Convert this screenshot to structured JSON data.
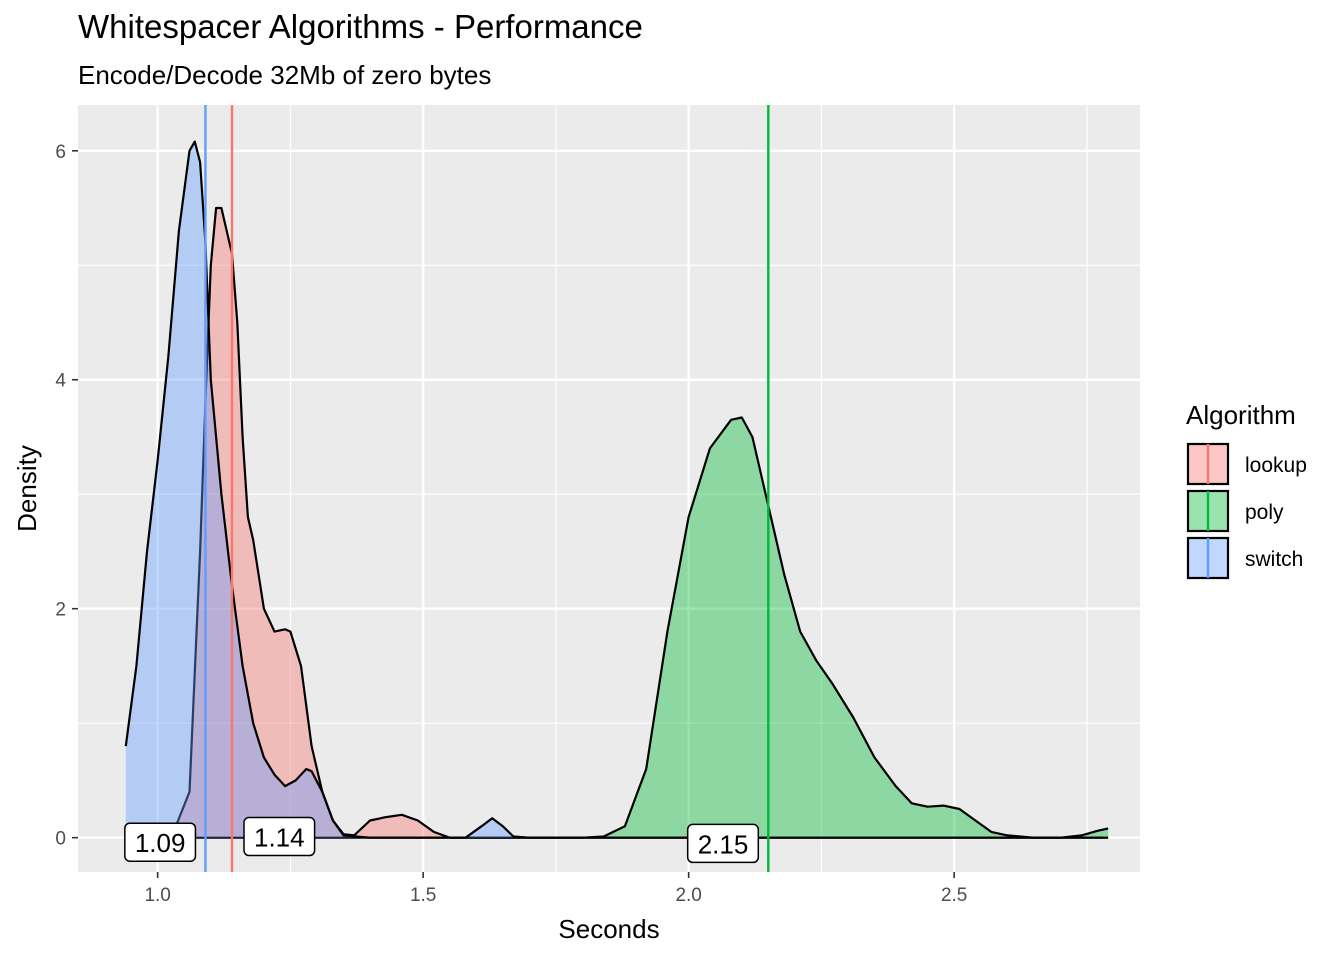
{
  "chart_data": {
    "type": "area",
    "title": "Whitespacer Algorithms - Performance",
    "subtitle": "Encode/Decode 32Mb of zero bytes",
    "xlabel": "Seconds",
    "ylabel": "Density",
    "xlim": [
      0.85,
      2.85
    ],
    "ylim": [
      -0.3,
      6.4
    ],
    "x_ticks": [
      1.0,
      1.5,
      2.0,
      2.5
    ],
    "x_tick_labels": [
      "1.0",
      "1.5",
      "2.0",
      "2.5"
    ],
    "y_ticks": [
      0,
      2,
      4,
      6
    ],
    "y_tick_labels": [
      "0",
      "2",
      "4",
      "6"
    ],
    "grid": true,
    "legend": {
      "title": "Algorithm",
      "position": "right"
    },
    "series": [
      {
        "name": "lookup",
        "fill": "#F8766D",
        "mean": 1.14,
        "mean_label": "1.14",
        "points": [
          [
            1.0,
            0.0
          ],
          [
            1.03,
            0.05
          ],
          [
            1.06,
            0.4
          ],
          [
            1.08,
            2.5
          ],
          [
            1.09,
            3.8
          ],
          [
            1.1,
            5.0
          ],
          [
            1.11,
            5.5
          ],
          [
            1.12,
            5.5
          ],
          [
            1.14,
            5.1
          ],
          [
            1.15,
            4.5
          ],
          [
            1.16,
            3.5
          ],
          [
            1.17,
            2.8
          ],
          [
            1.18,
            2.6
          ],
          [
            1.2,
            2.0
          ],
          [
            1.22,
            1.8
          ],
          [
            1.24,
            1.82
          ],
          [
            1.25,
            1.8
          ],
          [
            1.27,
            1.5
          ],
          [
            1.29,
            0.8
          ],
          [
            1.31,
            0.4
          ],
          [
            1.33,
            0.15
          ],
          [
            1.35,
            0.03
          ],
          [
            1.37,
            0.02
          ],
          [
            1.4,
            0.15
          ],
          [
            1.43,
            0.18
          ],
          [
            1.46,
            0.2
          ],
          [
            1.49,
            0.15
          ],
          [
            1.52,
            0.05
          ],
          [
            1.55,
            0.0
          ],
          [
            1.6,
            0.0
          ],
          [
            2.79,
            0.0
          ]
        ]
      },
      {
        "name": "poly",
        "fill": "#00BA38",
        "mean": 2.15,
        "mean_label": "2.15",
        "points": [
          [
            1.0,
            0.0
          ],
          [
            1.8,
            0.0
          ],
          [
            1.84,
            0.01
          ],
          [
            1.88,
            0.1
          ],
          [
            1.92,
            0.6
          ],
          [
            1.96,
            1.8
          ],
          [
            2.0,
            2.8
          ],
          [
            2.04,
            3.4
          ],
          [
            2.08,
            3.65
          ],
          [
            2.1,
            3.67
          ],
          [
            2.12,
            3.5
          ],
          [
            2.15,
            2.9
          ],
          [
            2.18,
            2.3
          ],
          [
            2.21,
            1.8
          ],
          [
            2.24,
            1.55
          ],
          [
            2.27,
            1.35
          ],
          [
            2.31,
            1.05
          ],
          [
            2.35,
            0.7
          ],
          [
            2.39,
            0.45
          ],
          [
            2.42,
            0.3
          ],
          [
            2.45,
            0.27
          ],
          [
            2.48,
            0.28
          ],
          [
            2.51,
            0.25
          ],
          [
            2.54,
            0.15
          ],
          [
            2.57,
            0.05
          ],
          [
            2.6,
            0.02
          ],
          [
            2.65,
            0.0
          ],
          [
            2.7,
            0.0
          ],
          [
            2.74,
            0.02
          ],
          [
            2.77,
            0.06
          ],
          [
            2.79,
            0.08
          ]
        ]
      },
      {
        "name": "switch",
        "fill": "#619CFF",
        "mean": 1.09,
        "mean_label": "1.09",
        "points": [
          [
            0.94,
            0.8
          ],
          [
            0.96,
            1.5
          ],
          [
            0.98,
            2.5
          ],
          [
            1.0,
            3.3
          ],
          [
            1.02,
            4.2
          ],
          [
            1.04,
            5.3
          ],
          [
            1.06,
            6.0
          ],
          [
            1.07,
            6.08
          ],
          [
            1.08,
            5.9
          ],
          [
            1.09,
            5.2
          ],
          [
            1.1,
            4.0
          ],
          [
            1.12,
            3.0
          ],
          [
            1.14,
            2.2
          ],
          [
            1.16,
            1.5
          ],
          [
            1.18,
            1.0
          ],
          [
            1.2,
            0.7
          ],
          [
            1.22,
            0.55
          ],
          [
            1.24,
            0.45
          ],
          [
            1.26,
            0.5
          ],
          [
            1.28,
            0.6
          ],
          [
            1.29,
            0.58
          ],
          [
            1.31,
            0.4
          ],
          [
            1.33,
            0.15
          ],
          [
            1.35,
            0.02
          ],
          [
            1.4,
            0.0
          ],
          [
            1.58,
            0.0
          ],
          [
            1.61,
            0.1
          ],
          [
            1.63,
            0.17
          ],
          [
            1.65,
            0.1
          ],
          [
            1.67,
            0.01
          ],
          [
            1.7,
            0.0
          ],
          [
            2.79,
            0.0
          ]
        ]
      }
    ]
  }
}
